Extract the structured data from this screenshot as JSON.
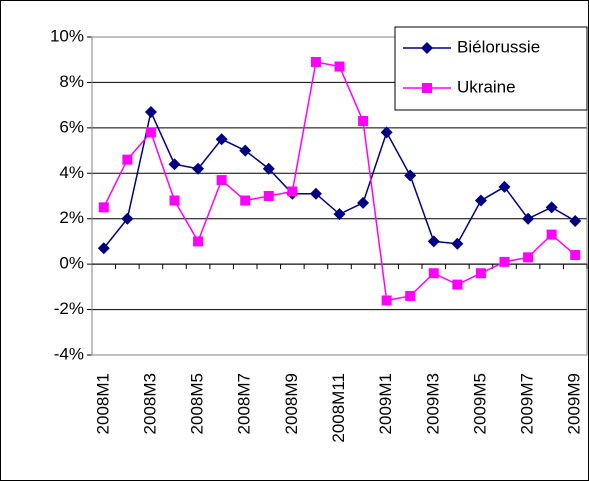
{
  "chart_data": {
    "type": "line",
    "categories": [
      "2008M1",
      null,
      "2008M3",
      null,
      "2008M5",
      null,
      "2008M7",
      null,
      "2008M9",
      null,
      "2008M11",
      null,
      "2009M1",
      null,
      "2009M3",
      null,
      "2009M5",
      null,
      "2009M7",
      null,
      "2009M9"
    ],
    "series": [
      {
        "name": "Biélorussie",
        "color": "#000080",
        "marker": "diamond",
        "values": [
          0.7,
          2.0,
          6.7,
          4.4,
          4.2,
          5.5,
          5.0,
          4.2,
          3.1,
          3.1,
          2.2,
          2.7,
          5.8,
          3.9,
          1.0,
          0.9,
          2.8,
          3.4,
          2.0,
          2.5,
          1.9
        ]
      },
      {
        "name": "Ukraine",
        "color": "#ff00ff",
        "marker": "square",
        "values": [
          2.5,
          4.6,
          5.8,
          2.8,
          1.0,
          3.7,
          2.8,
          3.0,
          3.2,
          8.9,
          8.7,
          6.3,
          -1.6,
          -1.4,
          -0.4,
          -0.9,
          -0.4,
          0.1,
          0.3,
          1.3,
          0.4
        ]
      }
    ],
    "ylim": [
      -4,
      10
    ],
    "yticks": [
      {
        "value": -4,
        "label": "-4%"
      },
      {
        "value": -2,
        "label": "-2%"
      },
      {
        "value": 0,
        "label": "0%"
      },
      {
        "value": 2,
        "label": "2%"
      },
      {
        "value": 4,
        "label": "4%"
      },
      {
        "value": 6,
        "label": "6%"
      },
      {
        "value": 8,
        "label": "8%"
      },
      {
        "value": 10,
        "label": "10%"
      }
    ],
    "grid": true,
    "legend": "upper right"
  }
}
